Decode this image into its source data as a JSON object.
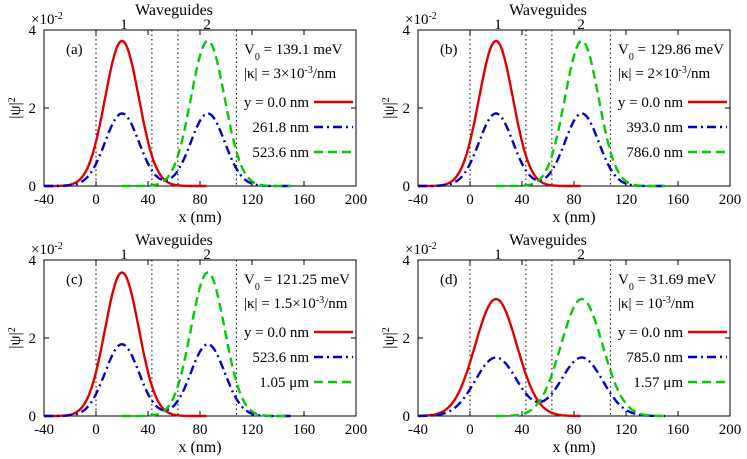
{
  "chart_data": [
    {
      "type": "line",
      "panel_label": "(a)",
      "title": "Waveguides",
      "waveguide_labels": [
        "1",
        "2"
      ],
      "ylabel": "|ψ|",
      "ylabel_sup": "2",
      "xlabel": "x (nm)",
      "y_multiplier": "×10",
      "y_multiplier_exp": "-2",
      "xlim": [
        -40,
        200
      ],
      "ylim": [
        0,
        4
      ],
      "xticks": [
        "-40",
        "0",
        "40",
        "80",
        "120",
        "160",
        "200"
      ],
      "yticks": [
        "0",
        "2",
        "4"
      ],
      "guide_boundaries": [
        0,
        43,
        63,
        108
      ],
      "params": {
        "v0_main": "V",
        "v0_sub": "0",
        "v0_value": " = 139.1 meV",
        "k_pre": "|κ| = 3×10",
        "k_sup": "-3",
        "k_post": "/nm"
      },
      "series": [
        {
          "name": "y = 0.0 nm",
          "color": "#dd0000",
          "dash": "solid",
          "center": 20,
          "peak": 3.72,
          "sigma": 13,
          "x_range": [
            -40,
            85
          ]
        },
        {
          "name": "261.8 nm",
          "color": "#0000cc",
          "dash": "dashdot",
          "center": 20,
          "peak": 1.86,
          "sigma": 13,
          "x_range": [
            -40,
            150
          ],
          "center2": 86,
          "peak2": 1.86
        },
        {
          "name": "523.6 nm",
          "color": "#00cc00",
          "dash": "dashed",
          "center": 86,
          "peak": 3.72,
          "sigma": 13,
          "x_range": [
            20,
            150
          ]
        }
      ]
    },
    {
      "type": "line",
      "panel_label": "(b)",
      "title": "Waveguides",
      "waveguide_labels": [
        "1",
        "2"
      ],
      "ylabel": "|ψ|",
      "ylabel_sup": "2",
      "xlabel": "x (nm)",
      "y_multiplier": "×10",
      "y_multiplier_exp": "-2",
      "xlim": [
        -40,
        200
      ],
      "ylim": [
        0,
        4
      ],
      "xticks": [
        "-40",
        "0",
        "40",
        "80",
        "120",
        "160",
        "200"
      ],
      "yticks": [
        "0",
        "2",
        "4"
      ],
      "guide_boundaries": [
        0,
        43,
        63,
        108
      ],
      "params": {
        "v0_main": "V",
        "v0_sub": "0",
        "v0_value": " = 129.86 meV",
        "k_pre": "|κ| = 2×10",
        "k_sup": "-3",
        "k_post": "/nm"
      },
      "series": [
        {
          "name": "y = 0.0 nm",
          "color": "#dd0000",
          "dash": "solid",
          "center": 20,
          "peak": 3.72,
          "sigma": 13,
          "x_range": [
            -40,
            85
          ]
        },
        {
          "name": "393.0 nm",
          "color": "#0000cc",
          "dash": "dashdot",
          "center": 20,
          "peak": 1.86,
          "sigma": 13,
          "x_range": [
            -40,
            150
          ],
          "center2": 86,
          "peak2": 1.86
        },
        {
          "name": "786.0 nm",
          "color": "#00cc00",
          "dash": "dashed",
          "center": 86,
          "peak": 3.72,
          "sigma": 13,
          "x_range": [
            20,
            150
          ]
        }
      ]
    },
    {
      "type": "line",
      "panel_label": "(c)",
      "title": "Waveguides",
      "waveguide_labels": [
        "1",
        "2"
      ],
      "ylabel": "|ψ|",
      "ylabel_sup": "2",
      "xlabel": "x (nm)",
      "y_multiplier": "×10",
      "y_multiplier_exp": "-2",
      "xlim": [
        -40,
        200
      ],
      "ylim": [
        0,
        4
      ],
      "xticks": [
        "-40",
        "0",
        "40",
        "80",
        "120",
        "160",
        "200"
      ],
      "yticks": [
        "0",
        "2",
        "4"
      ],
      "guide_boundaries": [
        0,
        43,
        63,
        108
      ],
      "params": {
        "v0_main": "V",
        "v0_sub": "0",
        "v0_value": " = 121.25 meV",
        "k_pre": "|κ| = 1.5×10",
        "k_sup": "-3",
        "k_post": "/nm"
      },
      "series": [
        {
          "name": "y = 0.0 nm",
          "color": "#dd0000",
          "dash": "solid",
          "center": 20,
          "peak": 3.68,
          "sigma": 13,
          "x_range": [
            -40,
            85
          ]
        },
        {
          "name": "523.6 nm",
          "color": "#0000cc",
          "dash": "dashdot",
          "center": 20,
          "peak": 1.84,
          "sigma": 13,
          "x_range": [
            -40,
            150
          ],
          "center2": 86,
          "peak2": 1.84
        },
        {
          "name": "1.05 μm",
          "color": "#00cc00",
          "dash": "dashed",
          "center": 86,
          "peak": 3.68,
          "sigma": 13,
          "x_range": [
            20,
            150
          ]
        }
      ]
    },
    {
      "type": "line",
      "panel_label": "(d)",
      "title": "Waveguides",
      "waveguide_labels": [
        "1",
        "2"
      ],
      "ylabel": "|ψ|",
      "ylabel_sup": "2",
      "xlabel": "x (nm)",
      "y_multiplier": "×10",
      "y_multiplier_exp": "-2",
      "xlim": [
        -40,
        200
      ],
      "ylim": [
        0,
        4
      ],
      "xticks": [
        "-40",
        "0",
        "40",
        "80",
        "120",
        "160",
        "200"
      ],
      "yticks": [
        "0",
        "2",
        "4"
      ],
      "guide_boundaries": [
        0,
        43,
        63,
        108
      ],
      "params": {
        "v0_main": "V",
        "v0_sub": "0",
        "v0_value": " = 31.69 meV",
        "k_pre": "|κ| = 10",
        "k_sup": "-3",
        "k_post": "/nm"
      },
      "series": [
        {
          "name": "y = 0.0 nm",
          "color": "#dd0000",
          "dash": "solid",
          "center": 20,
          "peak": 3.0,
          "sigma": 16,
          "x_range": [
            -40,
            85
          ]
        },
        {
          "name": "785.0 nm",
          "color": "#0000cc",
          "dash": "dashdot",
          "center": 20,
          "peak": 1.5,
          "sigma": 16,
          "x_range": [
            -40,
            150
          ],
          "center2": 86,
          "peak2": 1.5
        },
        {
          "name": "1.57 μm",
          "color": "#00cc00",
          "dash": "dashed",
          "center": 86,
          "peak": 3.0,
          "sigma": 16,
          "x_range": [
            20,
            150
          ]
        }
      ]
    }
  ]
}
